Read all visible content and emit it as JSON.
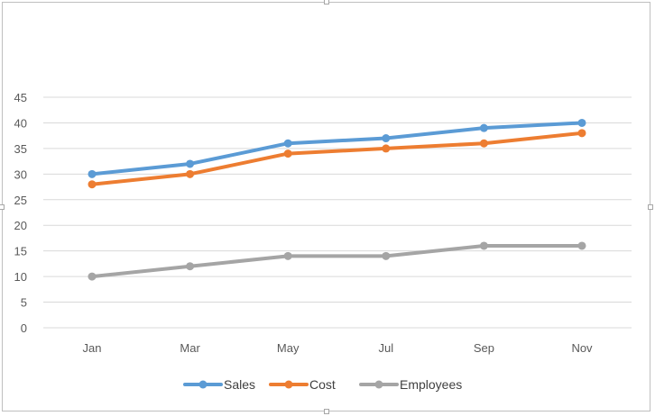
{
  "chart_data": {
    "type": "line",
    "title": "",
    "xlabel": "",
    "ylabel": "",
    "categories": [
      "Jan",
      "Mar",
      "May",
      "Jul",
      "Sep",
      "Nov"
    ],
    "ylim": [
      0,
      45
    ],
    "yticks": [
      0,
      5,
      10,
      15,
      20,
      25,
      30,
      35,
      40,
      45
    ],
    "grid": true,
    "legend_position": "bottom",
    "series": [
      {
        "name": "Sales",
        "color": "#5b9bd5",
        "values": [
          30,
          32,
          36,
          37,
          39,
          40
        ]
      },
      {
        "name": "Cost",
        "color": "#ed7d31",
        "values": [
          28,
          30,
          34,
          35,
          36,
          38
        ]
      },
      {
        "name": "Employees",
        "color": "#a5a5a5",
        "values": [
          10,
          12,
          14,
          14,
          16,
          16
        ]
      }
    ]
  }
}
